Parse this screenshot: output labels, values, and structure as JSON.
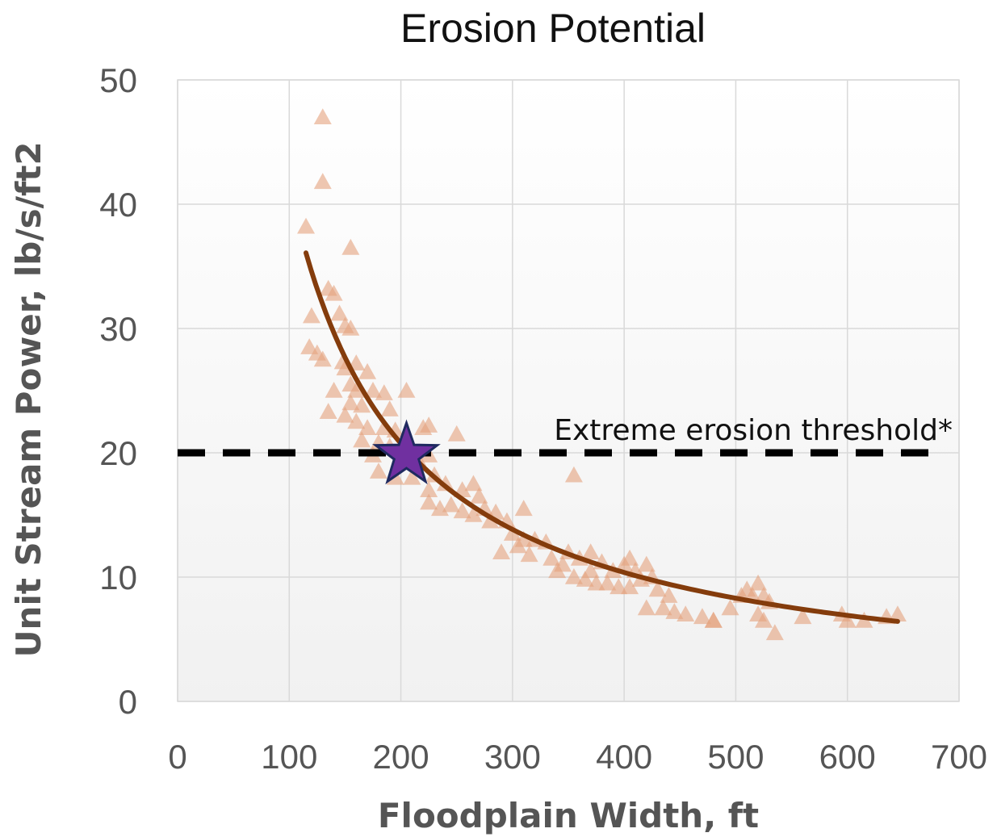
{
  "chart_data": {
    "type": "scatter",
    "title": "Erosion Potential",
    "xlabel": "Floodplain Width, ft",
    "ylabel": "Unit Stream Power, lb/s/ft2",
    "xlim": [
      0,
      700
    ],
    "ylim": [
      0,
      50
    ],
    "x_ticks": [
      "0",
      "100",
      "200",
      "300",
      "400",
      "500",
      "600",
      "700"
    ],
    "y_ticks": [
      "0",
      "10",
      "20",
      "30",
      "40",
      "50"
    ],
    "x_tick_values": [
      0,
      100,
      200,
      300,
      400,
      500,
      600,
      700
    ],
    "y_tick_values": [
      0,
      10,
      20,
      30,
      40,
      50
    ],
    "grid": true,
    "colors": {
      "points": "#e5a27d",
      "trend": "#843c0c",
      "threshold": "#000000",
      "star_fill": "#7030a0",
      "star_stroke": "#1f2a60",
      "grid": "#d9d9d9"
    },
    "threshold": {
      "y": 20,
      "label": "Extreme erosion threshold*"
    },
    "marker": {
      "x": 205,
      "y": 19.8,
      "shape": "star"
    },
    "trend": {
      "x_start": 115,
      "x_end": 645,
      "k": 4150,
      "exponent": 1
    },
    "points": [
      [
        130,
        47
      ],
      [
        130,
        41.8
      ],
      [
        115,
        38.2
      ],
      [
        155,
        36.5
      ],
      [
        135,
        33.2
      ],
      [
        140,
        32.8
      ],
      [
        120,
        31
      ],
      [
        145,
        31.2
      ],
      [
        150,
        30.2
      ],
      [
        155,
        30
      ],
      [
        118,
        28.5
      ],
      [
        125,
        28
      ],
      [
        130,
        27.5
      ],
      [
        148,
        27.3
      ],
      [
        150,
        26.8
      ],
      [
        160,
        27.2
      ],
      [
        155,
        25.5
      ],
      [
        170,
        26.5
      ],
      [
        140,
        25
      ],
      [
        160,
        25
      ],
      [
        175,
        25
      ],
      [
        185,
        24.8
      ],
      [
        205,
        25
      ],
      [
        155,
        24
      ],
      [
        165,
        23.8
      ],
      [
        190,
        23.5
      ],
      [
        135,
        23.3
      ],
      [
        150,
        23
      ],
      [
        160,
        22.5
      ],
      [
        170,
        22
      ],
      [
        185,
        22
      ],
      [
        195,
        21.8
      ],
      [
        220,
        22
      ],
      [
        225,
        22.2
      ],
      [
        250,
        21.5
      ],
      [
        165,
        21
      ],
      [
        180,
        20.8
      ],
      [
        190,
        20.5
      ],
      [
        210,
        20.2
      ],
      [
        175,
        19.8
      ],
      [
        200,
        19.5
      ],
      [
        215,
        19.5
      ],
      [
        225,
        19.8
      ],
      [
        180,
        18.5
      ],
      [
        195,
        18
      ],
      [
        210,
        18
      ],
      [
        230,
        18.2
      ],
      [
        355,
        18.2
      ],
      [
        225,
        17
      ],
      [
        240,
        17.5
      ],
      [
        255,
        17
      ],
      [
        265,
        17.5
      ],
      [
        225,
        16
      ],
      [
        235,
        15.5
      ],
      [
        245,
        15.8
      ],
      [
        255,
        15.3
      ],
      [
        265,
        15
      ],
      [
        275,
        15.5
      ],
      [
        285,
        15.2
      ],
      [
        295,
        14.5
      ],
      [
        310,
        15.5
      ],
      [
        270,
        16.5
      ],
      [
        280,
        14.5
      ],
      [
        300,
        13.5
      ],
      [
        310,
        13
      ],
      [
        320,
        13
      ],
      [
        330,
        12.8
      ],
      [
        290,
        12
      ],
      [
        305,
        12.5
      ],
      [
        315,
        11.8
      ],
      [
        335,
        11.5
      ],
      [
        345,
        11
      ],
      [
        350,
        12
      ],
      [
        360,
        11.5
      ],
      [
        370,
        12
      ],
      [
        380,
        11.2
      ],
      [
        390,
        10.5
      ],
      [
        400,
        11
      ],
      [
        410,
        10.5
      ],
      [
        420,
        11
      ],
      [
        340,
        10.5
      ],
      [
        355,
        10
      ],
      [
        365,
        9.8
      ],
      [
        375,
        9.5
      ],
      [
        385,
        9.5
      ],
      [
        395,
        9.2
      ],
      [
        405,
        9.2
      ],
      [
        415,
        9.8
      ],
      [
        425,
        10
      ],
      [
        430,
        9
      ],
      [
        440,
        8.5
      ],
      [
        420,
        7.5
      ],
      [
        435,
        7.5
      ],
      [
        445,
        7.2
      ],
      [
        455,
        7
      ],
      [
        470,
        6.8
      ],
      [
        480,
        6.5
      ],
      [
        495,
        7.5
      ],
      [
        505,
        8.5
      ],
      [
        510,
        9
      ],
      [
        515,
        8.5
      ],
      [
        520,
        9.5
      ],
      [
        525,
        8.5
      ],
      [
        530,
        8
      ],
      [
        520,
        7
      ],
      [
        525,
        6.5
      ],
      [
        535,
        5.5
      ],
      [
        560,
        6.8
      ],
      [
        595,
        7
      ],
      [
        600,
        6.5
      ],
      [
        615,
        6.5
      ],
      [
        635,
        6.8
      ],
      [
        645,
        7
      ],
      [
        480,
        6.5
      ],
      [
        405,
        11.5
      ],
      [
        370,
        10.5
      ]
    ]
  }
}
